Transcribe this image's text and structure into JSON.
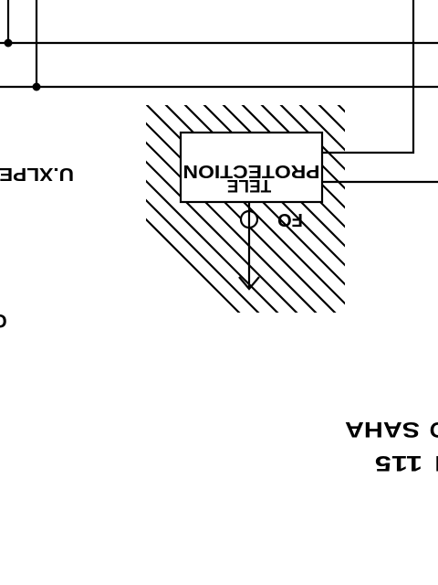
{
  "colors": {
    "ink": "#000000",
    "paper": "#ffffff"
  },
  "labels": {
    "protection": "PROTECTION",
    "tele": "TELE",
    "fo": "FO",
    "cable": "U.XLPE",
    "edge_letter": "C",
    "saha": "SAHA",
    "number": "115"
  }
}
